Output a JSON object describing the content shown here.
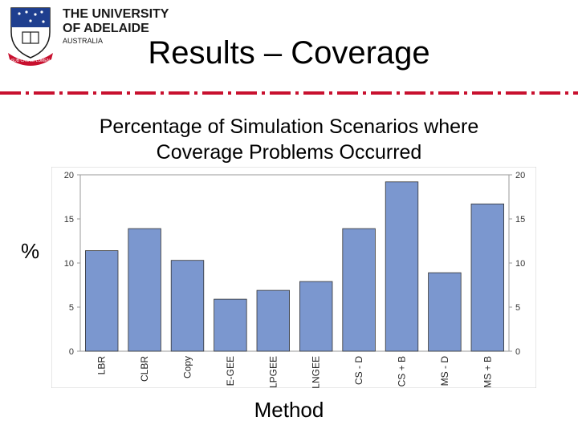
{
  "logo": {
    "line1": "THE UNIVERSITY",
    "line2": "OF ADELAIDE",
    "line3": "AUSTRALIA",
    "motto": "SUB CRUCE LUMEN",
    "crest_icon": "university-crest-icon",
    "brand_color": "#c8102e"
  },
  "slide": {
    "title": "Results – Coverage",
    "subtitle_line1": "Percentage of Simulation Scenarios where",
    "subtitle_line2": "Coverage Problems Occurred",
    "divider_color": "#c8102e"
  },
  "chart_data": {
    "type": "bar",
    "categories": [
      "LBR",
      "CLBR",
      "Copy",
      "E-GEE",
      "LPGEE",
      "LNGEE",
      "CS - D",
      "CS + B",
      "MS - D",
      "MS + B"
    ],
    "values": [
      11.4,
      13.9,
      10.3,
      5.9,
      6.9,
      7.9,
      13.9,
      19.2,
      8.9,
      16.7
    ],
    "title": "",
    "xlabel": "Method",
    "ylabel": "%",
    "ylim": [
      0,
      20
    ],
    "yticks": [
      0,
      5,
      10,
      15,
      20
    ],
    "bar_color": "#7b97cf",
    "grid": false
  }
}
